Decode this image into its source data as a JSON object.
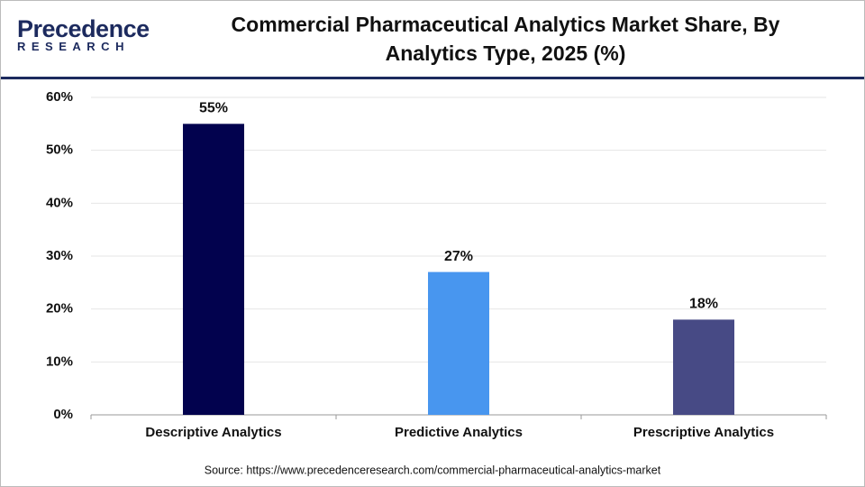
{
  "logo": {
    "name": "Precedence",
    "tagline": "RESEARCH"
  },
  "chart_data": {
    "type": "bar",
    "title": "Commercial Pharmaceutical Analytics Market Share, By Analytics Type, 2025 (%)",
    "categories": [
      "Descriptive Analytics",
      "Predictive Analytics",
      "Prescriptive Analytics"
    ],
    "values": [
      55,
      27,
      18
    ],
    "value_labels": [
      "55%",
      "27%",
      "18%"
    ],
    "colors": [
      "#02024e",
      "#4896ef",
      "#474a85"
    ],
    "ylim": [
      0,
      60
    ],
    "yticks": [
      {
        "value": 0,
        "label": "0%"
      },
      {
        "value": 10,
        "label": "10%"
      },
      {
        "value": 20,
        "label": "20%"
      },
      {
        "value": 30,
        "label": "30%"
      },
      {
        "value": 40,
        "label": "40%"
      },
      {
        "value": 50,
        "label": "50%"
      },
      {
        "value": 60,
        "label": "60%"
      }
    ],
    "grid": true,
    "source": "Source: https://www.precedenceresearch.com/commercial-pharmaceutical-analytics-market"
  }
}
